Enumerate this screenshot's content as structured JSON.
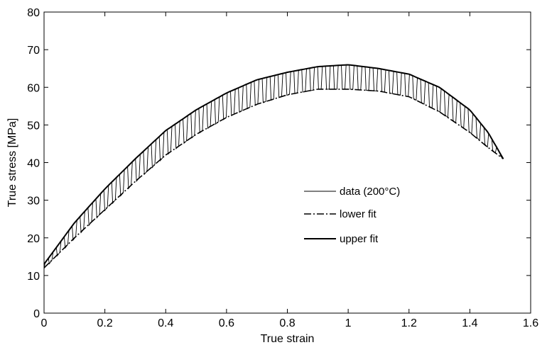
{
  "chart_data": {
    "type": "line",
    "xlabel": "True strain",
    "ylabel": "True stress [MPa]",
    "xlim": [
      0,
      1.6
    ],
    "ylim": [
      0,
      80
    ],
    "xticks": [
      "0",
      "0.2",
      "0.4",
      "0.6",
      "0.8",
      "1",
      "1.2",
      "1.4",
      "1.6"
    ],
    "yticks": [
      "0",
      "10",
      "20",
      "30",
      "40",
      "50",
      "60",
      "70",
      "80"
    ],
    "grid": false,
    "legend_position": "center-right",
    "series": [
      {
        "name": "data (200°C)",
        "style": "thin-solid",
        "x": [
          0,
          0.1,
          0.2,
          0.3,
          0.4,
          0.5,
          0.6,
          0.7,
          0.8,
          0.9,
          1.0,
          1.1,
          1.2,
          1.3,
          1.4,
          1.46,
          1.51
        ],
        "y_upper": [
          13,
          24,
          33,
          41,
          48.5,
          54,
          58.5,
          62,
          64,
          65.5,
          66,
          65,
          63.5,
          60,
          54,
          48,
          41
        ],
        "y_lower": [
          12,
          20,
          27.5,
          35,
          42,
          47.5,
          52,
          55.5,
          58,
          59.5,
          59.5,
          59,
          57.5,
          53.5,
          48,
          44,
          41
        ]
      },
      {
        "name": "lower fit",
        "style": "dash-dot",
        "x": [
          0,
          0.1,
          0.2,
          0.3,
          0.4,
          0.5,
          0.6,
          0.7,
          0.8,
          0.9,
          1.0,
          1.1,
          1.2,
          1.3,
          1.4,
          1.46,
          1.51
        ],
        "y": [
          12,
          20,
          27.5,
          35,
          42,
          47.5,
          52,
          55.5,
          58,
          59.5,
          59.5,
          59,
          57.5,
          53.5,
          48,
          44,
          41
        ]
      },
      {
        "name": "upper fit",
        "style": "solid",
        "x": [
          0,
          0.1,
          0.2,
          0.3,
          0.4,
          0.5,
          0.6,
          0.7,
          0.8,
          0.9,
          1.0,
          1.1,
          1.2,
          1.3,
          1.4,
          1.46,
          1.51
        ],
        "y": [
          13,
          24,
          33,
          41,
          48.5,
          54,
          58.5,
          62,
          64,
          65.5,
          66,
          65,
          63.5,
          60,
          54,
          48,
          41
        ]
      }
    ]
  }
}
